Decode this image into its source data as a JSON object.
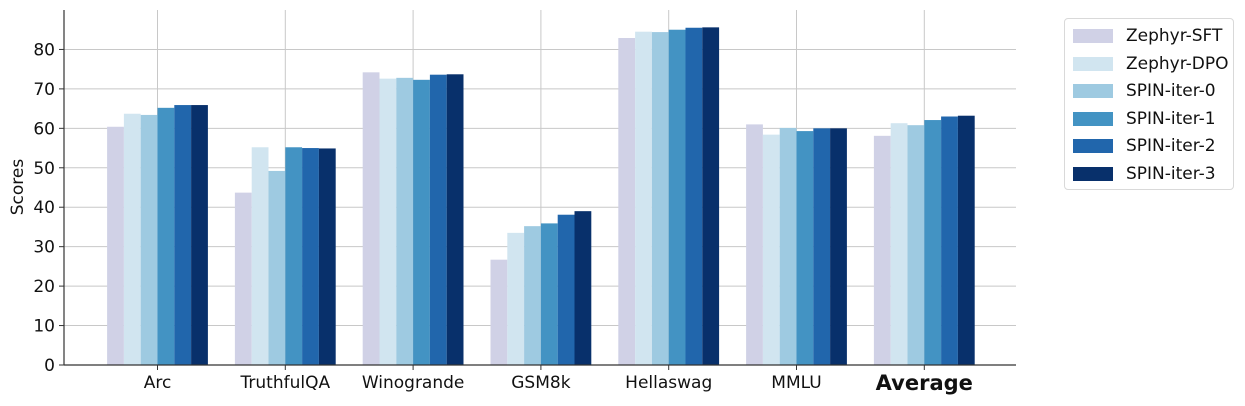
{
  "chart_data": {
    "type": "bar",
    "ylabel": "Scores",
    "xlabel": "",
    "title": "",
    "ylim": [
      0,
      90
    ],
    "yticks": [
      0,
      10,
      20,
      30,
      40,
      50,
      60,
      70,
      80
    ],
    "grid": true,
    "legend_placement": "outside-top-right",
    "categories": [
      "Arc",
      "TruthfulQA",
      "Winogrande",
      "GSM8k",
      "Hellaswag",
      "MMLU",
      "Average"
    ],
    "bold_categories": [
      "Average"
    ],
    "series": [
      {
        "name": "Zephyr-SFT",
        "color": "#d0d1e6",
        "values": [
          60.4,
          43.7,
          74.2,
          26.7,
          82.9,
          61.0,
          58.1
        ]
      },
      {
        "name": "Zephyr-DPO",
        "color": "#d1e5f0",
        "values": [
          63.7,
          55.2,
          72.6,
          33.5,
          84.5,
          58.4,
          61.3
        ]
      },
      {
        "name": "SPIN-iter-0",
        "color": "#9ecae1",
        "values": [
          63.4,
          49.2,
          72.8,
          35.2,
          84.4,
          60.1,
          60.8
        ]
      },
      {
        "name": "SPIN-iter-1",
        "color": "#4393c3",
        "values": [
          65.2,
          55.2,
          72.3,
          35.9,
          85.0,
          59.3,
          62.1
        ]
      },
      {
        "name": "SPIN-iter-2",
        "color": "#2166ac",
        "values": [
          65.9,
          55.0,
          73.6,
          38.1,
          85.5,
          60.0,
          63.0
        ]
      },
      {
        "name": "SPIN-iter-3",
        "color": "#08306b",
        "values": [
          65.9,
          54.9,
          73.7,
          39.0,
          85.6,
          60.0,
          63.2
        ]
      }
    ]
  }
}
